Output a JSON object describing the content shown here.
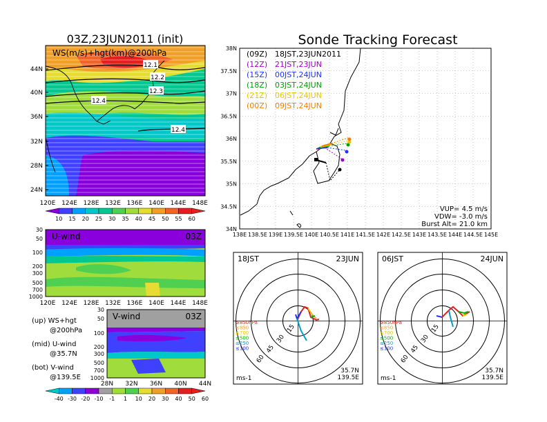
{
  "left_panel": {
    "title": "03Z,23JUN2011 (init)",
    "map_label": "WS(m/s)+hgt(km)@200hPa",
    "lat_labels": [
      "44N",
      "40N",
      "36N",
      "32N",
      "28N",
      "24N"
    ],
    "lon_labels": [
      "120E",
      "124E",
      "128E",
      "132E",
      "136E",
      "140E",
      "144E",
      "148E"
    ],
    "contour_labels": [
      "12.1",
      "12.2",
      "12.3",
      "12.4",
      "12.4"
    ],
    "ws_colorbar": [
      "10",
      "15",
      "20",
      "25",
      "30",
      "35",
      "40",
      "45",
      "50",
      "55",
      "60"
    ],
    "u_panel": {
      "label": "U-wind",
      "time": "03Z",
      "p_labels": [
        "30",
        "50",
        "100",
        "200",
        "300",
        "500",
        "700",
        "1000"
      ],
      "lon_labels": [
        "120E",
        "124E",
        "128E",
        "132E",
        "136E",
        "140E",
        "144E",
        "148E"
      ]
    },
    "v_panel": {
      "label": "V-wind",
      "time": "03Z",
      "p_labels": [
        "30",
        "50",
        "100",
        "200",
        "300",
        "500",
        "700",
        "1000"
      ],
      "lat_labels": [
        "28N",
        "32N",
        "36N",
        "40N",
        "44N"
      ]
    },
    "wind_colorbar": [
      "-40",
      "-30",
      "-20",
      "-10",
      "-1",
      "1",
      "10",
      "20",
      "30",
      "40",
      "50",
      "60"
    ],
    "legend": [
      {
        "line1": "(up) WS+hgt",
        "line2": "@200hPa"
      },
      {
        "line1": "(mid) U-wind",
        "line2": "@35.7N"
      },
      {
        "line1": "(bot) V-wind",
        "line2": "@139.5E"
      }
    ]
  },
  "tracking": {
    "title": "Sonde Tracking Forecast",
    "lat_labels": [
      "38N",
      "37.5N",
      "37N",
      "36.5N",
      "36N",
      "35.5N",
      "35N",
      "34.5N",
      "34N"
    ],
    "lon_labels": [
      "138E",
      "138.5E",
      "139E",
      "139.5E",
      "140E",
      "140.5E",
      "141E",
      "141.5E",
      "142E",
      "142.5E",
      "143E",
      "143.5E",
      "144E",
      "144.5E",
      "145E"
    ],
    "launches": [
      {
        "code": "(09Z)",
        "local": "18JST,23JUN2011",
        "color": "#000000"
      },
      {
        "code": "(12Z)",
        "local": "21JST,23JUN",
        "color": "#a000c8"
      },
      {
        "code": "(15Z)",
        "local": "00JST,24JUN",
        "color": "#2030ff"
      },
      {
        "code": "(18Z)",
        "local": "03JST,24JUN",
        "color": "#00a000"
      },
      {
        "code": "(21Z)",
        "local": "06JST,24JUN",
        "color": "#e6c800"
      },
      {
        "code": "(00Z)",
        "local": "09JST,24JUN",
        "color": "#f08000"
      }
    ],
    "params": [
      "VUP= 4.5 m/s",
      "VDW= -3.0 m/s",
      "Burst Alt= 21.0 km"
    ]
  },
  "hodographs": [
    {
      "time": "18JST",
      "date": "23JUN",
      "rings": [
        "15",
        "30",
        "45",
        "60"
      ],
      "unit": "ms-1",
      "lat": "35.7N",
      "lon": "139.5E",
      "levels": [
        "≥850hPa",
        "≤850",
        "≤700",
        "≤500",
        "≤250",
        "≤100"
      ]
    },
    {
      "time": "06JST",
      "date": "24JUN",
      "rings": [
        "15",
        "30",
        "45",
        "60"
      ],
      "unit": "ms-1",
      "lat": "35.7N",
      "lon": "139.5E",
      "levels": [
        "≥850hPa",
        "≤850",
        "≤700",
        "≤500",
        "≤250",
        "≤100"
      ]
    }
  ],
  "colors": {
    "ws_bar": [
      "#8a00dc",
      "#4040ff",
      "#00a0ff",
      "#00c8c8",
      "#00c890",
      "#50d050",
      "#a0dc3c",
      "#e6dc32",
      "#f0a028",
      "#f06428",
      "#e61e1e"
    ],
    "wind_bar": [
      "#00c8c8",
      "#00a0ff",
      "#4040ff",
      "#8a00dc",
      "#a0a0a0",
      "#a0dc3c",
      "#50d050",
      "#e6dc32",
      "#f0a028",
      "#f06428",
      "#e61e1e"
    ],
    "level_colors": [
      "#e61e1e",
      "#f0a028",
      "#e6c800",
      "#00b000",
      "#00a0c8",
      "#2030ff"
    ]
  }
}
